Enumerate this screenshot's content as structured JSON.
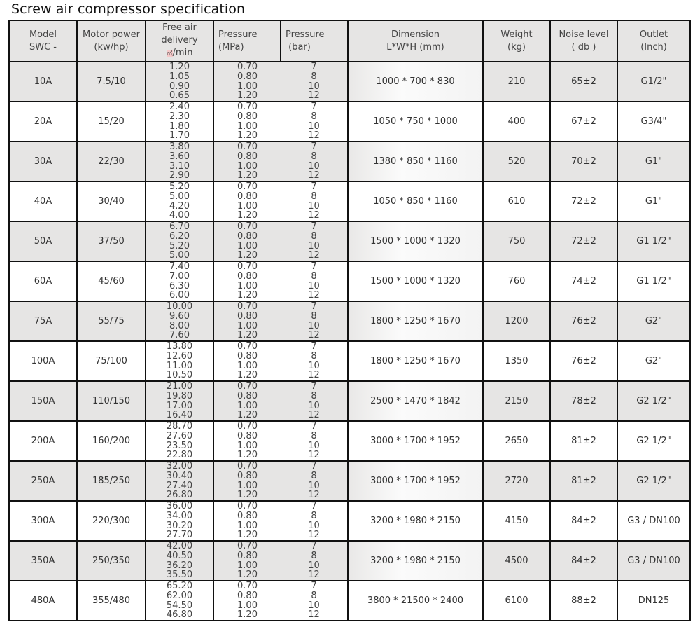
{
  "title": "Screw air compressor specification",
  "headers": {
    "model": [
      "Model",
      "SWC -"
    ],
    "motor": [
      "Motor power",
      "(kw/hp)"
    ],
    "fad": [
      "Free air",
      "delivery",
      "㎥",
      "/min"
    ],
    "mpa": [
      "Pressure",
      "(MPa)"
    ],
    "bar": [
      "Pressure",
      "(bar)"
    ],
    "dimension": [
      "Dimension",
      "L*W*H  (mm)"
    ],
    "weight": [
      "Weight",
      "(kg)"
    ],
    "noise": [
      "Noise level",
      "( db )"
    ],
    "outlet": [
      "Outlet",
      "(Inch)"
    ]
  },
  "pressure_mpa": [
    "0.70",
    "0.80",
    "1.00",
    "1.20"
  ],
  "pressure_bar": [
    "7",
    "8",
    "10",
    "12"
  ],
  "rows": [
    {
      "model": "10A",
      "motor": "7.5/10",
      "fad": [
        "1.20",
        "1.05",
        "0.90",
        "0.65"
      ],
      "dimension": "1000 * 700 * 830",
      "weight": "210",
      "noise": "65±2",
      "outlet": "G1/2\""
    },
    {
      "model": "20A",
      "motor": "15/20",
      "fad": [
        "2.40",
        "2.30",
        "1.80",
        "1.70"
      ],
      "dimension": "1050 * 750 * 1000",
      "weight": "400",
      "noise": "67±2",
      "outlet": "G3/4\""
    },
    {
      "model": "30A",
      "motor": "22/30",
      "fad": [
        "3.80",
        "3.60",
        "3.10",
        "2.90"
      ],
      "dimension": "1380 * 850 * 1160",
      "weight": "520",
      "noise": "70±2",
      "outlet": "G1\""
    },
    {
      "model": "40A",
      "motor": "30/40",
      "fad": [
        "5.20",
        "5.00",
        "4.20",
        "4.00"
      ],
      "dimension": "1050 * 850 * 1160",
      "weight": "610",
      "noise": "72±2",
      "outlet": "G1\""
    },
    {
      "model": "50A",
      "motor": "37/50",
      "fad": [
        "6.70",
        "6.20",
        "5.20",
        "5.00"
      ],
      "dimension": "1500 * 1000 * 1320",
      "weight": "750",
      "noise": "72±2",
      "outlet": "G1 1/2\""
    },
    {
      "model": "60A",
      "motor": "45/60",
      "fad": [
        "7.40",
        "7.00",
        "6.30",
        "6.00"
      ],
      "dimension": "1500 * 1000 * 1320",
      "weight": "760",
      "noise": "74±2",
      "outlet": "G1 1/2\""
    },
    {
      "model": "75A",
      "motor": "55/75",
      "fad": [
        "10.00",
        "9.60",
        "8.00",
        "7.60"
      ],
      "dimension": "1800 * 1250 * 1670",
      "weight": "1200",
      "noise": "76±2",
      "outlet": "G2\""
    },
    {
      "model": "100A",
      "motor": "75/100",
      "fad": [
        "13.80",
        "12.60",
        "11.00",
        "10.50"
      ],
      "dimension": "1800 * 1250 * 1670",
      "weight": "1350",
      "noise": "76±2",
      "outlet": "G2\""
    },
    {
      "model": "150A",
      "motor": "110/150",
      "fad": [
        "21.00",
        "19.80",
        "17.00",
        "16.40"
      ],
      "dimension": "2500 * 1470 * 1842",
      "weight": "2150",
      "noise": "78±2",
      "outlet": "G2 1/2\""
    },
    {
      "model": "200A",
      "motor": "160/200",
      "fad": [
        "28.70",
        "27.60",
        "23.50",
        "22.80"
      ],
      "dimension": "3000 * 1700 * 1952",
      "weight": "2650",
      "noise": "81±2",
      "outlet": "G2 1/2\""
    },
    {
      "model": "250A",
      "motor": "185/250",
      "fad": [
        "32.00",
        "30.40",
        "27.40",
        "26.80"
      ],
      "dimension": "3000 * 1700 * 1952",
      "weight": "2720",
      "noise": "81±2",
      "outlet": "G2 1/2\""
    },
    {
      "model": "300A",
      "motor": "220/300",
      "fad": [
        "36.00",
        "34.00",
        "30.20",
        "27.70"
      ],
      "dimension": "3200 * 1980 * 2150",
      "weight": "4150",
      "noise": "84±2",
      "outlet": "G3 / DN100"
    },
    {
      "model": "350A",
      "motor": "250/350",
      "fad": [
        "42.00",
        "40.50",
        "36.20",
        "35.50"
      ],
      "dimension": "3200 * 1980 * 2150",
      "weight": "4500",
      "noise": "84±2",
      "outlet": "G3 / DN100"
    },
    {
      "model": "480A",
      "motor": "355/480",
      "fad": [
        "65.20",
        "62.00",
        "54.50",
        "46.80"
      ],
      "dimension": "3800 * 21500 * 2400",
      "weight": "6100",
      "noise": "88±2",
      "outlet": "DN125"
    }
  ]
}
